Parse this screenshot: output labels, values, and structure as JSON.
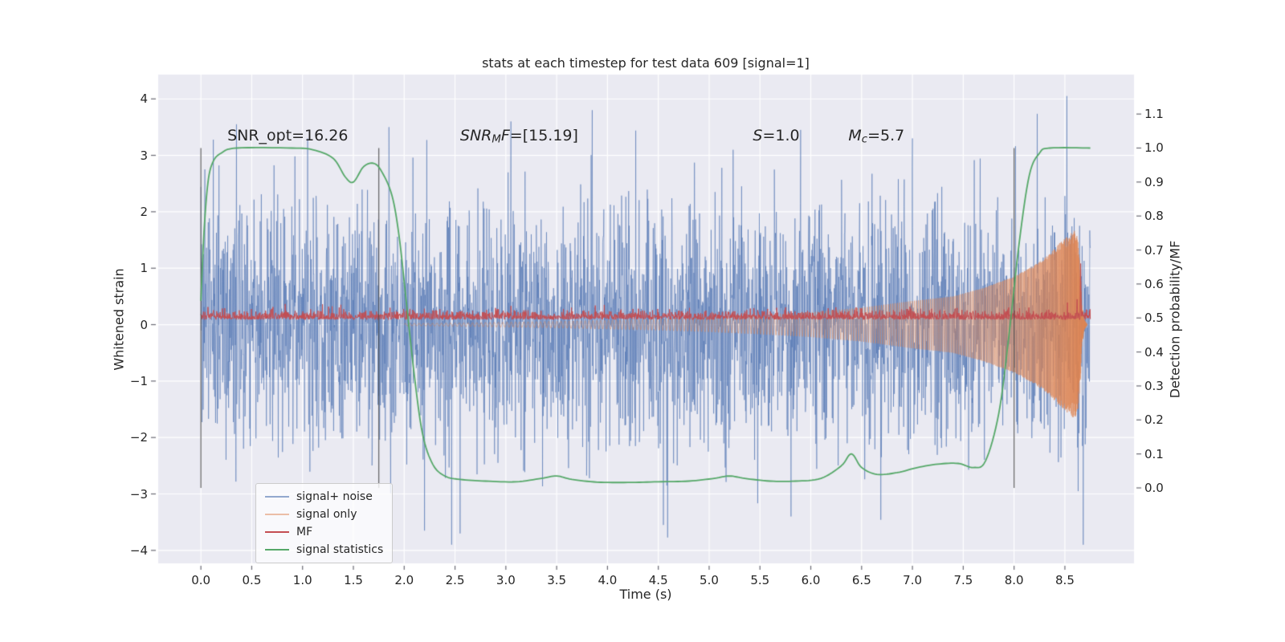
{
  "figure": {
    "background": "#ffffff",
    "plot_background": "#eaeaf2",
    "grid_color": "#ffffff",
    "text_color": "#262626",
    "tick_mark_color": "#6a6a74"
  },
  "chart_data": {
    "type": "line",
    "title": "stats at each timestep for test data 609 [signal=1]",
    "xlabel": "Time (s)",
    "ylabel_left": "Whitened strain",
    "ylabel_right": "Detection probability/MF",
    "xlim": [
      -0.42,
      9.18
    ],
    "ylim_left": [
      -4.23,
      4.43
    ],
    "ylim_right": [
      -0.222,
      1.216
    ],
    "t_range": [
      0.0,
      8.75
    ],
    "x_ticks": [
      0.0,
      0.5,
      1.0,
      1.5,
      2.0,
      2.5,
      3.0,
      3.5,
      4.0,
      4.5,
      5.0,
      5.5,
      6.0,
      6.5,
      7.0,
      7.5,
      8.0,
      8.5
    ],
    "y_ticks_left": [
      -4,
      -3,
      -2,
      -1,
      0,
      1,
      2,
      3,
      4
    ],
    "y_ticks_right": [
      0.0,
      0.1,
      0.2,
      0.3,
      0.4,
      0.5,
      0.6,
      0.7,
      0.8,
      0.9,
      1.0,
      1.1
    ],
    "grid": true,
    "legend_position": "lower-left",
    "vlines": {
      "color": "#4a4a4a",
      "opacity": 0.8,
      "x_values": [
        0.0,
        1.75,
        8.0
      ],
      "y_span_right_axis": [
        0.0,
        1.0
      ]
    },
    "annotations": [
      {
        "x": 0.26,
        "y": 3.2,
        "segments": [
          {
            "text": "SNR_opt=16.26"
          }
        ]
      },
      {
        "x": 2.55,
        "y": 3.2,
        "segments": [
          {
            "text": "SNR",
            "italic": true
          },
          {
            "text": "M",
            "italic": true,
            "sub": true
          },
          {
            "text": "F",
            "italic": true
          },
          {
            "text": "=[15.19]"
          }
        ]
      },
      {
        "x": 5.43,
        "y": 3.2,
        "segments": [
          {
            "text": "S",
            "italic": true
          },
          {
            "text": "=1.0"
          }
        ]
      },
      {
        "x": 6.37,
        "y": 3.2,
        "segments": [
          {
            "text": "M",
            "italic": true
          },
          {
            "text": "c",
            "italic": true,
            "sub": true
          },
          {
            "text": "=5.7"
          }
        ]
      }
    ],
    "series": [
      {
        "name": "signal+ noise",
        "kind": "gaussian_noise",
        "axis": "left",
        "color": "#4c72b0",
        "opacity": 0.6,
        "std": 1.05,
        "seed": 609,
        "samples_per_sec": 360,
        "spikes": [
          [
            0.35,
            3.55
          ],
          [
            1.05,
            3.3
          ],
          [
            1.85,
            3.5
          ],
          [
            2.2,
            -3.65
          ],
          [
            2.55,
            -3.7
          ],
          [
            3.05,
            3.6
          ],
          [
            3.85,
            3.8
          ],
          [
            4.55,
            -3.55
          ],
          [
            5.9,
            3.45
          ],
          [
            7.0,
            3.3
          ],
          [
            8.52,
            4.05
          ],
          [
            8.68,
            -3.9
          ]
        ]
      },
      {
        "name": "signal only",
        "kind": "chirp",
        "axis": "left",
        "color": "#dd8452",
        "opacity": 0.5,
        "envelope": [
          [
            2.0,
            0.02
          ],
          [
            2.5,
            0.03
          ],
          [
            3.0,
            0.045
          ],
          [
            3.5,
            0.06
          ],
          [
            4.0,
            0.08
          ],
          [
            4.5,
            0.1
          ],
          [
            5.0,
            0.13
          ],
          [
            5.5,
            0.17
          ],
          [
            6.0,
            0.22
          ],
          [
            6.5,
            0.3
          ],
          [
            7.0,
            0.42
          ],
          [
            7.4,
            0.5
          ],
          [
            7.7,
            0.65
          ],
          [
            8.0,
            0.85
          ],
          [
            8.2,
            1.05
          ],
          [
            8.35,
            1.25
          ],
          [
            8.45,
            1.45
          ],
          [
            8.55,
            1.6
          ],
          [
            8.6,
            1.68
          ],
          [
            8.63,
            1.5
          ],
          [
            8.655,
            0.9
          ],
          [
            8.67,
            0.35
          ],
          [
            8.69,
            0.1
          ],
          [
            8.72,
            0.0
          ]
        ],
        "frequency": {
          "base": 12,
          "scale": 70,
          "t_merge": 8.9
        }
      },
      {
        "name": "MF",
        "kind": "noise_band",
        "axis": "right",
        "color": "#c44e52",
        "baseline": 0.495,
        "noise_amp": 0.013,
        "seed": 77,
        "spikes": [
          [
            8.62,
            0.555
          ],
          [
            8.655,
            0.66
          ]
        ]
      },
      {
        "name": "signal statistics",
        "kind": "curve",
        "axis": "right",
        "color": "#55a868",
        "points": [
          [
            0.0,
            0.55
          ],
          [
            0.03,
            0.75
          ],
          [
            0.07,
            0.9
          ],
          [
            0.12,
            0.96
          ],
          [
            0.2,
            0.985
          ],
          [
            0.35,
            1.0
          ],
          [
            0.9,
            1.0
          ],
          [
            1.1,
            0.995
          ],
          [
            1.3,
            0.97
          ],
          [
            1.42,
            0.915
          ],
          [
            1.5,
            0.9
          ],
          [
            1.6,
            0.945
          ],
          [
            1.7,
            0.955
          ],
          [
            1.78,
            0.93
          ],
          [
            1.88,
            0.86
          ],
          [
            1.95,
            0.74
          ],
          [
            2.02,
            0.55
          ],
          [
            2.1,
            0.33
          ],
          [
            2.18,
            0.16
          ],
          [
            2.28,
            0.07
          ],
          [
            2.4,
            0.035
          ],
          [
            2.55,
            0.025
          ],
          [
            2.8,
            0.02
          ],
          [
            3.1,
            0.018
          ],
          [
            3.35,
            0.028
          ],
          [
            3.5,
            0.035
          ],
          [
            3.65,
            0.025
          ],
          [
            3.9,
            0.017
          ],
          [
            4.2,
            0.016
          ],
          [
            4.5,
            0.018
          ],
          [
            4.8,
            0.02
          ],
          [
            5.05,
            0.028
          ],
          [
            5.2,
            0.035
          ],
          [
            5.35,
            0.028
          ],
          [
            5.6,
            0.02
          ],
          [
            5.85,
            0.02
          ],
          [
            6.1,
            0.028
          ],
          [
            6.3,
            0.065
          ],
          [
            6.4,
            0.1
          ],
          [
            6.5,
            0.06
          ],
          [
            6.65,
            0.04
          ],
          [
            6.85,
            0.045
          ],
          [
            7.05,
            0.06
          ],
          [
            7.25,
            0.07
          ],
          [
            7.45,
            0.072
          ],
          [
            7.6,
            0.06
          ],
          [
            7.72,
            0.08
          ],
          [
            7.85,
            0.22
          ],
          [
            7.95,
            0.45
          ],
          [
            8.05,
            0.72
          ],
          [
            8.15,
            0.92
          ],
          [
            8.25,
            0.985
          ],
          [
            8.35,
            1.0
          ],
          [
            8.75,
            1.0
          ]
        ]
      }
    ]
  }
}
